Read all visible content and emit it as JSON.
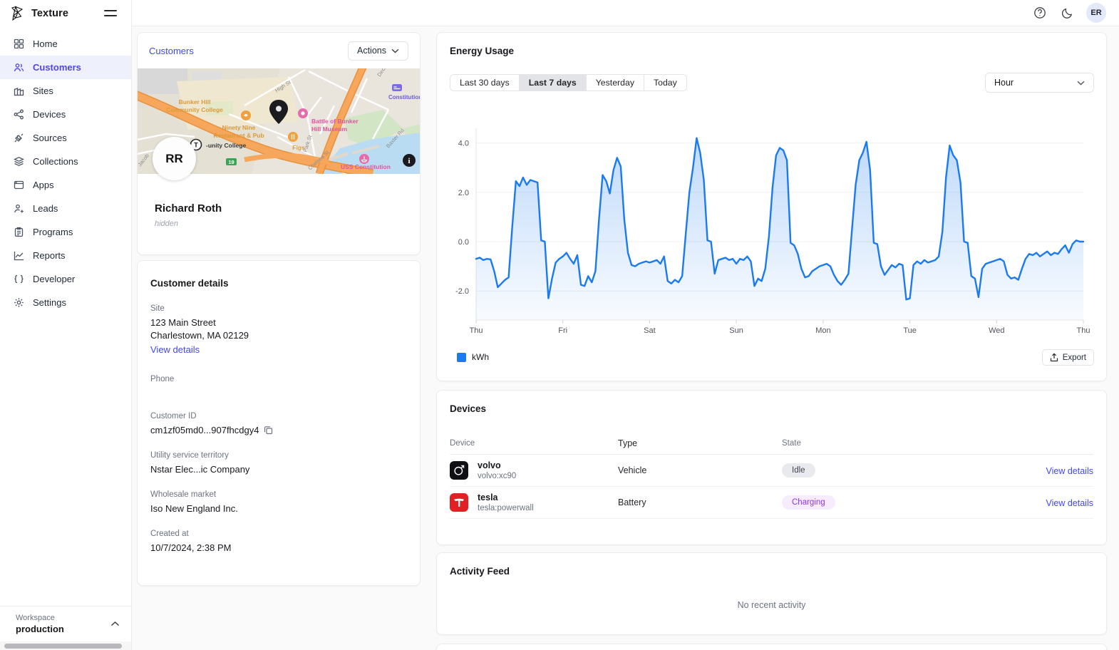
{
  "brand": {
    "name": "Texture",
    "logo_icon": "texture-triangles-logo",
    "menu_icon": "hamburger-icon"
  },
  "topbar": {
    "help_icon": "help-circle-icon",
    "theme_icon": "moon-icon",
    "avatar_initials": "ER"
  },
  "sidebar": {
    "items": [
      {
        "label": "Home",
        "icon": "grid-icon",
        "active": false
      },
      {
        "label": "Customers",
        "icon": "people-icon",
        "active": true
      },
      {
        "label": "Sites",
        "icon": "building-icon",
        "active": false
      },
      {
        "label": "Devices",
        "icon": "share-nodes-icon",
        "active": false
      },
      {
        "label": "Sources",
        "icon": "plug-icon",
        "active": false
      },
      {
        "label": "Collections",
        "icon": "layers-icon",
        "active": false
      },
      {
        "label": "Apps",
        "icon": "window-icon",
        "active": false
      },
      {
        "label": "Leads",
        "icon": "person-plus-icon",
        "active": false
      },
      {
        "label": "Programs",
        "icon": "clipboard-icon",
        "active": false
      },
      {
        "label": "Reports",
        "icon": "chart-line-icon",
        "active": false
      },
      {
        "label": "Developer",
        "icon": "code-braces-icon",
        "active": false
      },
      {
        "label": "Settings",
        "icon": "gear-icon",
        "active": false
      }
    ],
    "workspace": {
      "label": "Workspace",
      "name": "production",
      "collapse_icon": "chevron-up-icon"
    }
  },
  "customer_card": {
    "breadcrumb": "Customers",
    "actions_label": "Actions",
    "avatar_initials": "RR",
    "name": "Richard Roth",
    "subtitle": "hidden",
    "map": {
      "pin_icon": "location-pin-icon",
      "attribution_icon": "info-icon",
      "labels": {
        "college1": "Bunker Hill",
        "college2": "Community College",
        "college_station": "-unity College",
        "restaurant1": "Ninety Nine",
        "restaurant2": "Restaurant & Pub",
        "museum1": "Battle of Bunker",
        "museum2": "Hill Museum",
        "figs": "Figs",
        "uss": "USS Constitution",
        "inn": "Constitution I",
        "high_st": "High St",
        "park_st": "Park St",
        "chelsea_st": "Chelsea St",
        "baxter_rd": "Baxter Rd",
        "decatur": "Deca",
        "jacob": "Jacob",
        "route_19": "19",
        "t_station": "T"
      }
    }
  },
  "customer_details": {
    "title": "Customer details",
    "site_label": "Site",
    "site_line1": "123 Main Street",
    "site_line2": "Charlestown, MA 02129",
    "site_link": "View details",
    "phone_label": "Phone",
    "phone_value": "",
    "customer_id_label": "Customer ID",
    "customer_id_value": "cm1zf05md0...907fhcdgy4",
    "copy_icon": "copy-icon",
    "territory_label": "Utility service territory",
    "territory_value": "Nstar Elec...ic Company",
    "market_label": "Wholesale market",
    "market_value": "Iso New England Inc.",
    "created_label": "Created at",
    "created_value": "10/7/2024, 2:38 PM"
  },
  "energy": {
    "title": "Energy Usage",
    "ranges": [
      "Last 30 days",
      "Last 7 days",
      "Yesterday",
      "Today"
    ],
    "selected_range": "Last 7 days",
    "interval_value": "Hour",
    "legend_label": "kWh",
    "legend_color": "#1b7af0",
    "export_label": "Export",
    "export_icon": "export-icon"
  },
  "devices": {
    "title": "Devices",
    "columns": {
      "device": "Device",
      "type": "Type",
      "state": "State"
    },
    "rows": [
      {
        "name": "volvo",
        "device_id": "volvo:xc90",
        "icon": "volvo-logo-icon",
        "type": "Vehicle",
        "state": "Idle",
        "state_bg": "#e9eaee",
        "state_fg": "#3f4450",
        "link": "View details"
      },
      {
        "name": "tesla",
        "device_id": "tesla:powerwall",
        "icon": "tesla-logo-icon",
        "type": "Battery",
        "state": "Charging",
        "state_bg": "#f6ecfd",
        "state_fg": "#9333ea",
        "link": "View details"
      }
    ]
  },
  "activity": {
    "title": "Activity Feed",
    "empty_message": "No recent activity"
  },
  "chart_data": {
    "type": "area",
    "title": "Energy Usage",
    "ylabel": "kWh",
    "interval": "hourly",
    "x_tick_labels": [
      "Thu",
      "Fri",
      "Sat",
      "Sun",
      "Mon",
      "Tue",
      "Wed",
      "Thu"
    ],
    "y_ticks": [
      4.0,
      2.0,
      0.0,
      -2.0
    ],
    "ylim": [
      -3.2,
      5.1
    ],
    "grid": true,
    "legend_position": "bottom-left",
    "series": [
      {
        "name": "kWh",
        "color": "#1b7af0",
        "values": [
          -0.7,
          -0.65,
          -0.75,
          -0.7,
          -0.72,
          -1.2,
          -1.85,
          -1.7,
          -1.55,
          -1.45,
          0.6,
          2.45,
          2.25,
          2.6,
          2.3,
          2.5,
          2.45,
          2.4,
          0.05,
          0,
          -2.3,
          -1.5,
          -0.85,
          -0.7,
          -0.6,
          -0.45,
          -0.7,
          -0.9,
          -0.55,
          -1.75,
          -1.8,
          -1.4,
          -1.65,
          -1.2,
          0.9,
          2.7,
          2.45,
          1.95,
          2.9,
          3.4,
          3.05,
          0.9,
          -0.45,
          -0.95,
          -1,
          -0.9,
          -0.85,
          -0.8,
          -0.85,
          -0.8,
          -0.75,
          -0.9,
          -0.6,
          -1.6,
          -1.7,
          -1.55,
          -1.65,
          -1.4,
          0.3,
          2,
          3,
          4.2,
          3.6,
          2.5,
          0.05,
          0,
          -1.3,
          -0.75,
          -0.7,
          -0.65,
          -0.75,
          -0.7,
          -0.9,
          -0.7,
          -0.75,
          -0.6,
          -0.8,
          -1.8,
          -1.5,
          -1.6,
          -1.1,
          0.2,
          2.2,
          3.5,
          3.8,
          3.7,
          3.3,
          -0.05,
          -0.15,
          -0.5,
          -1.1,
          -1.45,
          -1.4,
          -1.2,
          -1.1,
          -1,
          -0.95,
          -0.9,
          -1,
          -1.35,
          -1.6,
          -1.75,
          -1.55,
          -1.3,
          0.5,
          2.3,
          3.3,
          3.6,
          4.05,
          2.9,
          -0.05,
          -0.1,
          -1,
          -1.35,
          -1.15,
          -0.95,
          -1.05,
          -0.9,
          -0.95,
          -2.35,
          -2.3,
          -0.95,
          -0.8,
          -0.9,
          -0.75,
          -0.85,
          -0.8,
          -0.75,
          -0.6,
          0.4,
          2.6,
          3.9,
          3.5,
          3.3,
          2.4,
          0,
          -0.05,
          -1.4,
          -1.5,
          -2.25,
          -1.1,
          -0.9,
          -0.85,
          -0.8,
          -0.75,
          -0.7,
          -0.8,
          -1.35,
          -1.5,
          -1.45,
          -1.55,
          -1.1,
          -0.7,
          -0.5,
          -0.55,
          -0.45,
          -0.6,
          -0.5,
          -0.4,
          -0.55,
          -0.45,
          -0.5,
          -0.3,
          -0.15,
          -0.45,
          -0.1,
          0.05,
          0,
          0
        ]
      }
    ]
  }
}
